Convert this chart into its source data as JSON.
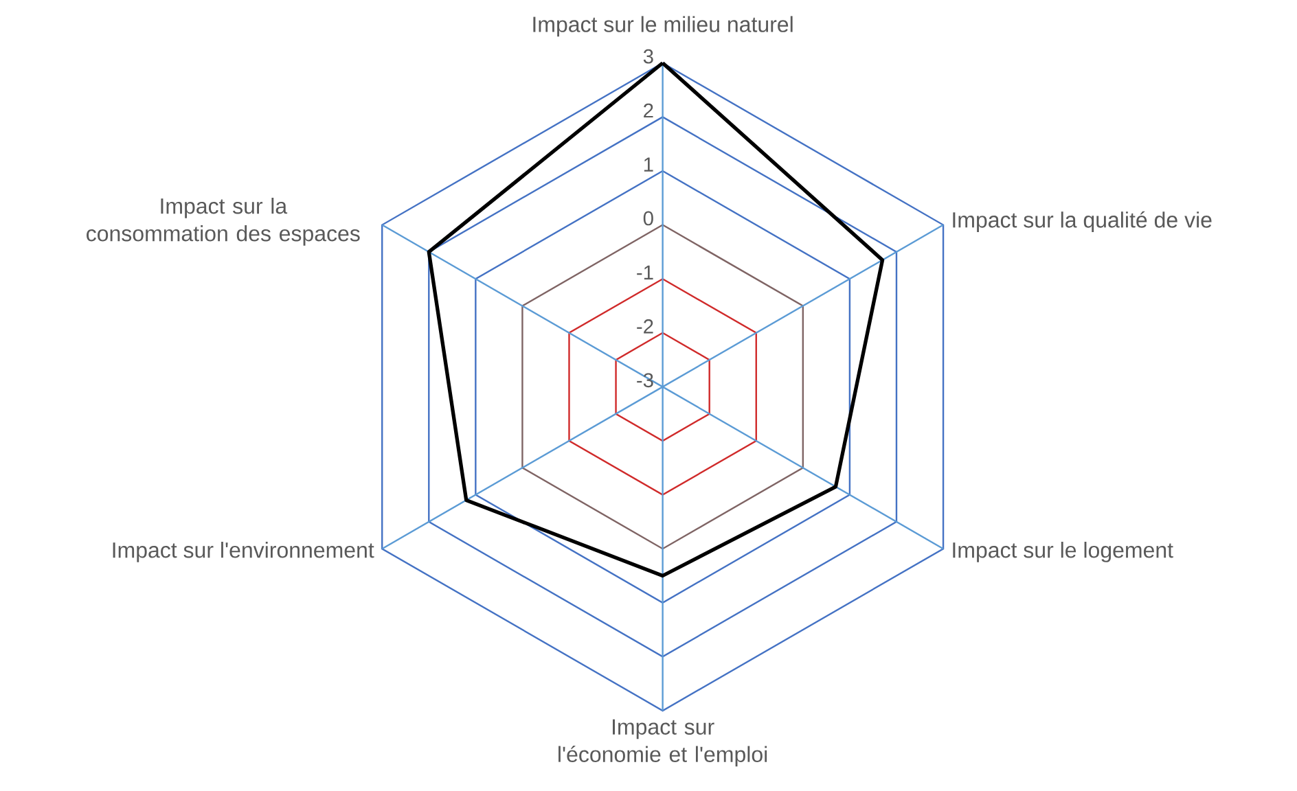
{
  "chart_data": {
    "type": "radar",
    "categories": [
      "Impact sur le milieu naturel",
      "Impact sur la qualité de vie",
      "Impact sur le logement",
      "Impact sur l'économie et l'emploi",
      "Impact sur l'environnement",
      "Impact sur la consommation des espaces"
    ],
    "series": [
      {
        "color": "#000000",
        "values": [
          3,
          1.7,
          0.7,
          0.5,
          1.2,
          2
        ]
      }
    ],
    "ylim": [
      -3,
      3
    ],
    "yticks": [
      -3,
      -2,
      -1,
      0,
      1,
      2,
      3
    ],
    "grid": true
  }
}
